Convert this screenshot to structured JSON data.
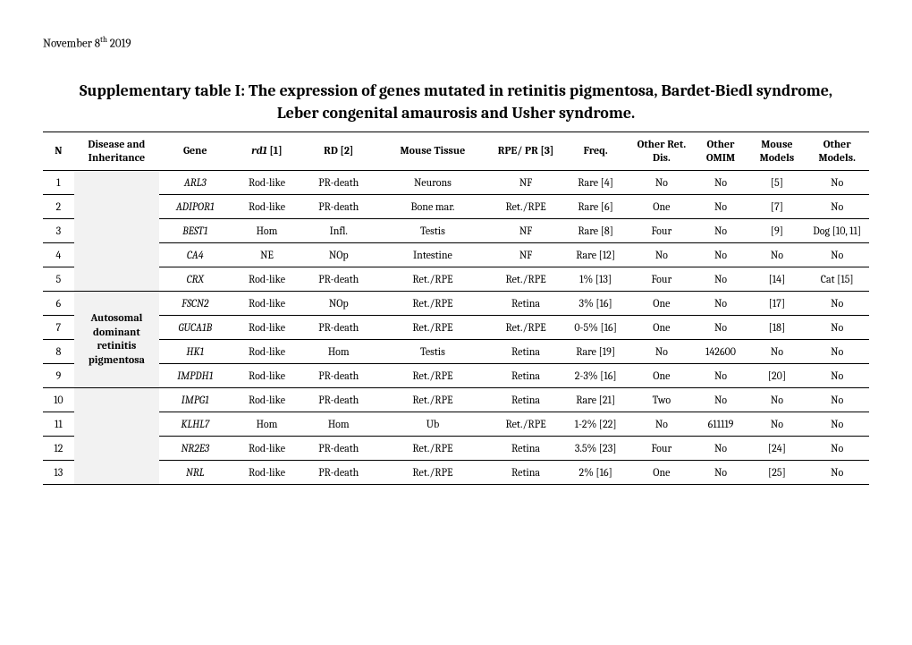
{
  "date_pre": "November 8",
  "date_sup": "th",
  "date_post": " 2019",
  "title": "Supplementary table I: The expression of genes mutated in retinitis pigmentosa, Bardet-Biedl syndrome, Leber congenital amaurosis and Usher syndrome.",
  "headers": {
    "n": "N",
    "disease": "Disease and Inheritance",
    "gene": "Gene",
    "rd1_pre": "rd1",
    "rd1_post": " [1]",
    "rd": "RD [2]",
    "mouse_tissue": "Mouse Tissue",
    "rpe": "RPE/ PR [3]",
    "freq": "Freq.",
    "other_ret": "Other Ret. Dis.",
    "other_omim": "Other OMIM",
    "mouse_models": "Mouse Models",
    "other_models": "Other Models."
  },
  "disease_group": "Autosomal dominant retinitis pigmentosa",
  "rows": [
    {
      "n": "1",
      "gene": "ARL3",
      "rd1": "Rod-like",
      "rd": "PR-death",
      "mt": "Neurons",
      "rpe": "NF",
      "freq": "Rare [4]",
      "ord": "No",
      "om": "No",
      "mm": "[5]",
      "omd": "No"
    },
    {
      "n": "2",
      "gene": "ADIPOR1",
      "rd1": "Rod-like",
      "rd": "PR-death",
      "mt": "Bone mar.",
      "rpe": "Ret./RPE",
      "freq": "Rare [6]",
      "ord": "One",
      "om": "No",
      "mm": "[7]",
      "omd": "No"
    },
    {
      "n": "3",
      "gene": "BEST1",
      "rd1": "Hom",
      "rd": "Infl.",
      "mt": "Testis",
      "rpe": "NF",
      "freq": "Rare [8]",
      "ord": "Four",
      "om": "No",
      "mm": "[9]",
      "omd": "Dog [10, 11]"
    },
    {
      "n": "4",
      "gene": "CA4",
      "rd1": "NE",
      "rd": "NOp",
      "mt": "Intestine",
      "rpe": "NF",
      "freq": "Rare [12]",
      "ord": "No",
      "om": "No",
      "mm": "No",
      "omd": "No"
    },
    {
      "n": "5",
      "gene": "CRX",
      "rd1": "Rod-like",
      "rd": "PR-death",
      "mt": "Ret./RPE",
      "rpe": "Ret./RPE",
      "freq": "1% [13]",
      "ord": "Four",
      "om": "No",
      "mm": "[14]",
      "omd": "Cat [15]"
    },
    {
      "n": "6",
      "gene": "FSCN2",
      "rd1": "Rod-like",
      "rd": "NOp",
      "mt": "Ret./RPE",
      "rpe": "Retina",
      "freq": "3% [16]",
      "ord": "One",
      "om": "No",
      "mm": "[17]",
      "omd": "No"
    },
    {
      "n": "7",
      "gene": "GUCA1B",
      "rd1": "Rod-like",
      "rd": "PR-death",
      "mt": "Ret./RPE",
      "rpe": "Ret./RPE",
      "freq": "0-5% [16]",
      "ord": "One",
      "om": "No",
      "mm": "[18]",
      "omd": "No"
    },
    {
      "n": "8",
      "gene": "HK1",
      "rd1": "Rod-like",
      "rd": "Hom",
      "mt": "Testis",
      "rpe": "Retina",
      "freq": "Rare [19]",
      "ord": "No",
      "om": "142600",
      "mm": "No",
      "omd": "No"
    },
    {
      "n": "9",
      "gene": "IMPDH1",
      "rd1": "Rod-like",
      "rd": "PR-death",
      "mt": "Ret./RPE",
      "rpe": "Retina",
      "freq": "2-3% [16]",
      "ord": "One",
      "om": "No",
      "mm": "[20]",
      "omd": "No"
    },
    {
      "n": "10",
      "gene": "IMPG1",
      "rd1": "Rod-like",
      "rd": "PR-death",
      "mt": "Ret./RPE",
      "rpe": "Retina",
      "freq": "Rare [21]",
      "ord": "Two",
      "om": "No",
      "mm": "No",
      "omd": "No"
    },
    {
      "n": "11",
      "gene": "KLHL7",
      "rd1": "Hom",
      "rd": "Hom",
      "mt": "Ub",
      "rpe": "Ret./RPE",
      "freq": "1-2% [22]",
      "ord": "No",
      "om": "611119",
      "mm": "No",
      "omd": "No"
    },
    {
      "n": "12",
      "gene": "NR2E3",
      "rd1": "Rod-like",
      "rd": "PR-death",
      "mt": "Ret./RPE",
      "rpe": "Retina",
      "freq": "3.5% [23]",
      "ord": "Four",
      "om": "No",
      "mm": "[24]",
      "omd": "No"
    },
    {
      "n": "13",
      "gene": "NRL",
      "rd1": "Rod-like",
      "rd": "PR-death",
      "mt": "Ret./RPE",
      "rpe": "Retina",
      "freq": "2% [16]",
      "ord": "One",
      "om": "No",
      "mm": "[25]",
      "omd": "No"
    }
  ]
}
